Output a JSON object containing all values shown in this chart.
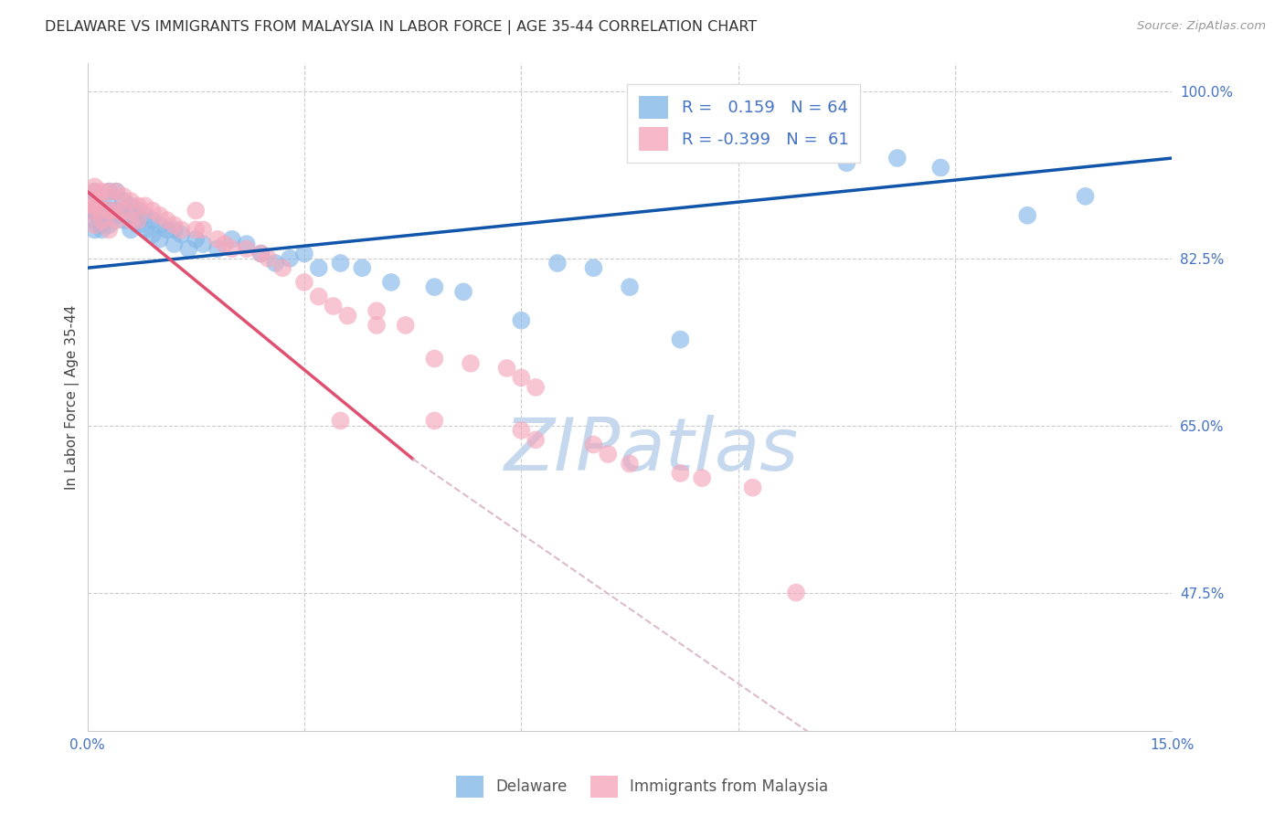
{
  "title": "DELAWARE VS IMMIGRANTS FROM MALAYSIA IN LABOR FORCE | AGE 35-44 CORRELATION CHART",
  "source": "Source: ZipAtlas.com",
  "ylabel": "In Labor Force | Age 35-44",
  "xlim": [
    0.0,
    0.15
  ],
  "ylim": [
    0.33,
    1.03
  ],
  "yticks": [
    0.475,
    0.65,
    0.825,
    1.0
  ],
  "yticklabels": [
    "47.5%",
    "65.0%",
    "82.5%",
    "100.0%"
  ],
  "xtick_show": [
    0.0,
    0.15
  ],
  "xticklabels_show": [
    "0.0%",
    "15.0%"
  ],
  "grid_xticks": [
    0.03,
    0.06,
    0.09,
    0.12
  ],
  "blue_R": 0.159,
  "blue_N": 64,
  "pink_R": -0.399,
  "pink_N": 61,
  "blue_color": "#85b8e8",
  "pink_color": "#f5a8bb",
  "blue_line_color": "#1155aa",
  "pink_line_color": "#e05070",
  "dashed_line_color": "#ddbbcc",
  "grid_color": "#cccccc",
  "watermark_color": "#c5d8ee",
  "blue_line": [
    0.0,
    0.815,
    0.15,
    0.93
  ],
  "pink_line_solid": [
    0.0,
    0.895,
    0.045,
    0.615
  ],
  "pink_line_dashed": [
    0.045,
    0.615,
    0.155,
    0.04
  ],
  "blue_x": [
    0.0005,
    0.0007,
    0.001,
    0.001,
    0.001,
    0.001,
    0.0015,
    0.0015,
    0.002,
    0.002,
    0.002,
    0.002,
    0.003,
    0.003,
    0.003,
    0.003,
    0.004,
    0.004,
    0.004,
    0.005,
    0.005,
    0.005,
    0.006,
    0.006,
    0.006,
    0.007,
    0.007,
    0.008,
    0.008,
    0.009,
    0.009,
    0.01,
    0.01,
    0.011,
    0.012,
    0.012,
    0.013,
    0.014,
    0.015,
    0.016,
    0.018,
    0.02,
    0.022,
    0.024,
    0.026,
    0.028,
    0.03,
    0.032,
    0.035,
    0.038,
    0.042,
    0.048,
    0.052,
    0.06,
    0.065,
    0.07,
    0.075,
    0.082,
    0.095,
    0.105,
    0.112,
    0.118,
    0.13,
    0.138
  ],
  "blue_y": [
    0.865,
    0.875,
    0.855,
    0.875,
    0.885,
    0.895,
    0.87,
    0.88,
    0.875,
    0.87,
    0.855,
    0.86,
    0.895,
    0.88,
    0.875,
    0.86,
    0.895,
    0.875,
    0.87,
    0.885,
    0.87,
    0.865,
    0.88,
    0.87,
    0.855,
    0.875,
    0.86,
    0.87,
    0.855,
    0.865,
    0.85,
    0.86,
    0.845,
    0.855,
    0.855,
    0.84,
    0.85,
    0.835,
    0.845,
    0.84,
    0.835,
    0.845,
    0.84,
    0.83,
    0.82,
    0.825,
    0.83,
    0.815,
    0.82,
    0.815,
    0.8,
    0.795,
    0.79,
    0.76,
    0.82,
    0.815,
    0.795,
    0.74,
    0.95,
    0.925,
    0.93,
    0.92,
    0.87,
    0.89
  ],
  "pink_x": [
    0.0005,
    0.0007,
    0.001,
    0.001,
    0.001,
    0.001,
    0.0015,
    0.002,
    0.002,
    0.002,
    0.003,
    0.003,
    0.003,
    0.004,
    0.004,
    0.004,
    0.005,
    0.005,
    0.006,
    0.006,
    0.007,
    0.007,
    0.008,
    0.009,
    0.01,
    0.011,
    0.012,
    0.013,
    0.015,
    0.015,
    0.016,
    0.018,
    0.019,
    0.02,
    0.022,
    0.024,
    0.025,
    0.027,
    0.03,
    0.032,
    0.034,
    0.036,
    0.04,
    0.04,
    0.044,
    0.048,
    0.053,
    0.058,
    0.06,
    0.062,
    0.035,
    0.048,
    0.06,
    0.062,
    0.07,
    0.072,
    0.075,
    0.082,
    0.085,
    0.092,
    0.098
  ],
  "pink_y": [
    0.875,
    0.88,
    0.9,
    0.895,
    0.88,
    0.86,
    0.885,
    0.895,
    0.875,
    0.865,
    0.895,
    0.875,
    0.855,
    0.895,
    0.875,
    0.865,
    0.89,
    0.875,
    0.885,
    0.865,
    0.88,
    0.865,
    0.88,
    0.875,
    0.87,
    0.865,
    0.86,
    0.855,
    0.875,
    0.855,
    0.855,
    0.845,
    0.84,
    0.835,
    0.835,
    0.83,
    0.825,
    0.815,
    0.8,
    0.785,
    0.775,
    0.765,
    0.77,
    0.755,
    0.755,
    0.72,
    0.715,
    0.71,
    0.7,
    0.69,
    0.655,
    0.655,
    0.645,
    0.635,
    0.63,
    0.62,
    0.61,
    0.6,
    0.595,
    0.585,
    0.475
  ]
}
